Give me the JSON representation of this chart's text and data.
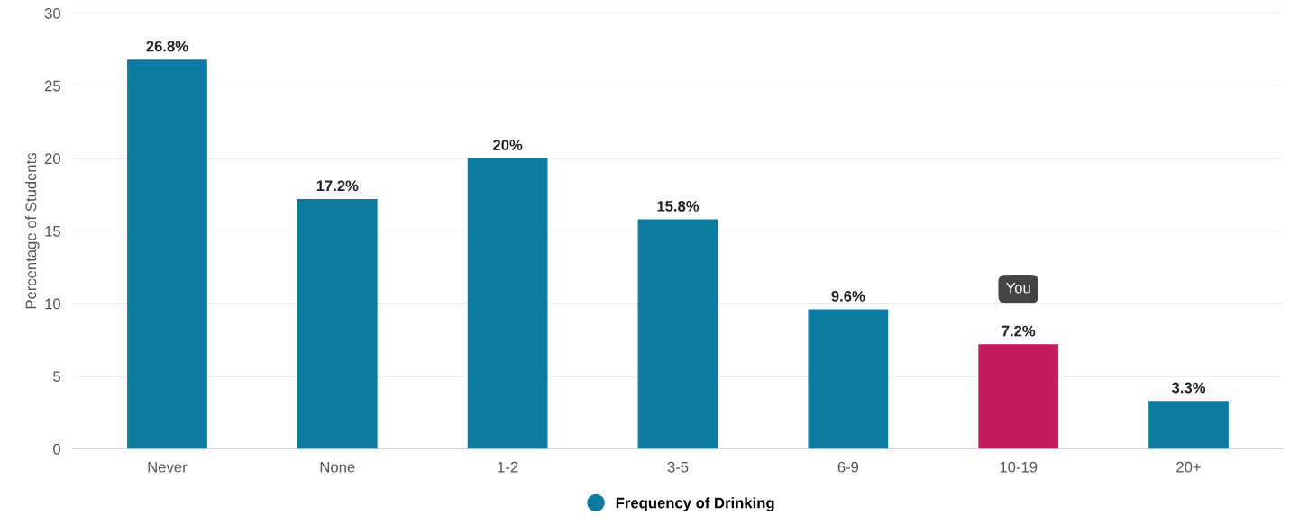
{
  "chart_data": {
    "type": "bar",
    "ylabel": "Percentage of Students",
    "categories": [
      "Never",
      "None",
      "1-2",
      "3-5",
      "6-9",
      "10-19",
      "20+"
    ],
    "series": [
      {
        "name": "Frequency of Drinking",
        "color": "#0e7ca0",
        "values": [
          26.8,
          17.2,
          20,
          15.8,
          9.6,
          7.2,
          3.3
        ],
        "colors": [
          "#0e7ca0",
          "#0e7ca0",
          "#0e7ca0",
          "#0e7ca0",
          "#0e7ca0",
          "#c41a62",
          "#0e7ca0"
        ],
        "value_labels": [
          "26.8%",
          "17.2%",
          "20%",
          "15.8%",
          "9.6%",
          "7.2%",
          "3.3%"
        ]
      }
    ],
    "ylim": [
      0,
      30
    ],
    "yticks": [
      0,
      5,
      10,
      15,
      20,
      25,
      30
    ],
    "grid": "y",
    "legend": "bottom",
    "annotations": [
      {
        "text": "You",
        "x": "10-19",
        "y": 11
      }
    ]
  }
}
